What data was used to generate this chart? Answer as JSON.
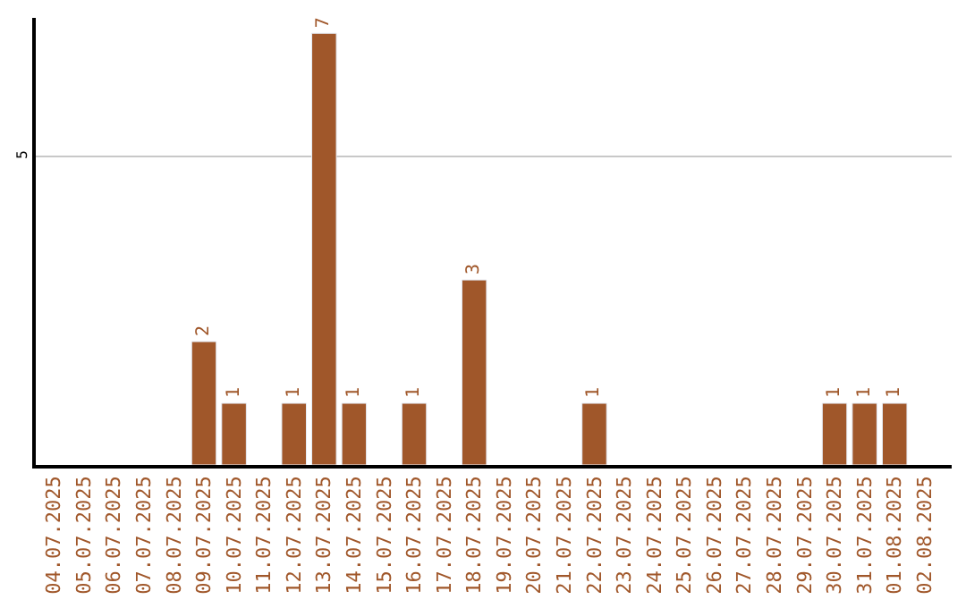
{
  "chart_data": {
    "type": "bar",
    "categories": [
      "04.07.2025",
      "05.07.2025",
      "06.07.2025",
      "07.07.2025",
      "08.07.2025",
      "09.07.2025",
      "10.07.2025",
      "11.07.2025",
      "12.07.2025",
      "13.07.2025",
      "14.07.2025",
      "15.07.2025",
      "16.07.2025",
      "17.07.2025",
      "18.07.2025",
      "19.07.2025",
      "20.07.2025",
      "21.07.2025",
      "22.07.2025",
      "23.07.2025",
      "24.07.2025",
      "25.07.2025",
      "26.07.2025",
      "27.07.2025",
      "28.07.2025",
      "29.07.2025",
      "30.07.2025",
      "31.07.2025",
      "01.08.2025",
      "02.08.2025"
    ],
    "values": [
      null,
      null,
      null,
      null,
      null,
      2,
      1,
      null,
      1,
      7,
      1,
      null,
      1,
      null,
      3,
      null,
      null,
      null,
      1,
      null,
      null,
      null,
      null,
      null,
      null,
      null,
      1,
      1,
      1,
      null
    ],
    "value_labels": [
      null,
      null,
      null,
      null,
      null,
      "2",
      "1",
      null,
      "1",
      "7",
      "1",
      null,
      "1",
      null,
      "3",
      null,
      null,
      null,
      "1",
      null,
      null,
      null,
      null,
      null,
      null,
      null,
      "1",
      "1",
      "1",
      null
    ],
    "color": "#a0572a",
    "ylim": [
      0,
      7.25
    ],
    "yticks": [
      5
    ],
    "grid": "y",
    "legend": false
  }
}
